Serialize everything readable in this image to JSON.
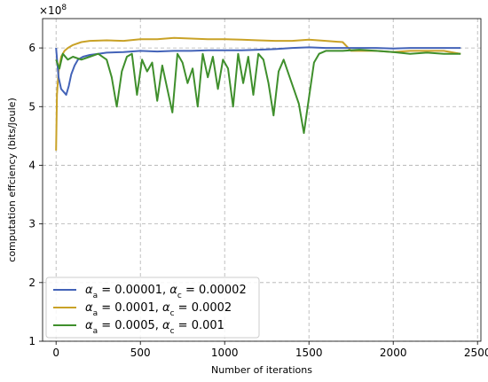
{
  "chart_data": {
    "type": "line",
    "xlabel": "Number of iterations",
    "ylabel": "computation effciency (bits/Joule)",
    "scale_label": "×10^8",
    "xlim": [
      -80,
      2520
    ],
    "ylim": [
      1,
      6.5
    ],
    "xticks": [
      0,
      500,
      1000,
      1500,
      2000,
      2500
    ],
    "yticks": [
      1,
      2,
      3,
      4,
      5,
      6
    ],
    "grid": true,
    "legend_position": "lower-left",
    "series": [
      {
        "name": "α_a = 0.00001, α_c = 0.00002",
        "legend_parts": [
          "α",
          "a",
          " = 0.00001, ",
          "α",
          "c",
          " = 0.00002"
        ],
        "color": "#4363b8",
        "x": [
          0,
          15,
          30,
          45,
          60,
          75,
          90,
          110,
          130,
          160,
          200,
          250,
          300,
          400,
          500,
          600,
          700,
          800,
          900,
          1000,
          1100,
          1200,
          1300,
          1400,
          1500,
          1600,
          1700,
          1800,
          1900,
          2000,
          2100,
          2200,
          2300,
          2400
        ],
        "y": [
          6.0,
          5.5,
          5.3,
          5.25,
          5.2,
          5.35,
          5.55,
          5.7,
          5.8,
          5.85,
          5.88,
          5.9,
          5.92,
          5.93,
          5.95,
          5.94,
          5.95,
          5.95,
          5.96,
          5.96,
          5.96,
          5.97,
          5.98,
          6.0,
          6.01,
          6.0,
          6.0,
          6.0,
          6.0,
          5.99,
          6.0,
          6.0,
          6.0,
          6.0
        ]
      },
      {
        "name": "α_a = 0.0001, α_c = 0.0002",
        "legend_parts": [
          "α",
          "a",
          " = 0.0001, ",
          "α",
          "c",
          " = 0.0002"
        ],
        "color": "#c9a227",
        "x": [
          0,
          5,
          15,
          30,
          50,
          70,
          100,
          150,
          200,
          300,
          400,
          500,
          600,
          700,
          800,
          900,
          1000,
          1100,
          1200,
          1300,
          1400,
          1500,
          1600,
          1700,
          1750,
          1800,
          1900,
          2000,
          2100,
          2200,
          2300,
          2400
        ],
        "y": [
          4.25,
          5.2,
          5.6,
          5.85,
          5.95,
          6.0,
          6.05,
          6.1,
          6.12,
          6.13,
          6.12,
          6.15,
          6.15,
          6.17,
          6.16,
          6.15,
          6.15,
          6.14,
          6.13,
          6.12,
          6.12,
          6.14,
          6.12,
          6.1,
          5.95,
          5.95,
          5.95,
          5.93,
          5.95,
          5.95,
          5.95,
          5.9
        ]
      },
      {
        "name": "α_a = 0.0005, α_c = 0.001",
        "legend_parts": [
          "α",
          "a",
          " = 0.0005, ",
          "α",
          "c",
          " = 0.001"
        ],
        "color": "#3f8f2c",
        "x": [
          0,
          20,
          40,
          70,
          100,
          150,
          200,
          250,
          300,
          330,
          360,
          390,
          420,
          450,
          480,
          510,
          540,
          570,
          600,
          630,
          660,
          690,
          720,
          750,
          780,
          810,
          840,
          870,
          900,
          930,
          960,
          990,
          1020,
          1050,
          1080,
          1110,
          1140,
          1170,
          1200,
          1230,
          1260,
          1290,
          1320,
          1350,
          1380,
          1410,
          1440,
          1470,
          1500,
          1530,
          1560,
          1600,
          1650,
          1700,
          1800,
          1900,
          2000,
          2100,
          2200,
          2300,
          2400
        ],
        "y": [
          5.8,
          5.65,
          5.9,
          5.8,
          5.85,
          5.8,
          5.85,
          5.9,
          5.8,
          5.5,
          5.0,
          5.6,
          5.85,
          5.9,
          5.2,
          5.8,
          5.6,
          5.75,
          5.1,
          5.7,
          5.3,
          4.9,
          5.9,
          5.75,
          5.4,
          5.65,
          5.0,
          5.9,
          5.5,
          5.85,
          5.3,
          5.8,
          5.65,
          5.0,
          5.9,
          5.4,
          5.85,
          5.2,
          5.9,
          5.8,
          5.4,
          4.85,
          5.6,
          5.8,
          5.55,
          5.3,
          5.05,
          4.55,
          5.15,
          5.75,
          5.9,
          5.95,
          5.95,
          5.95,
          5.97,
          5.95,
          5.93,
          5.9,
          5.92,
          5.9,
          5.9
        ]
      }
    ]
  }
}
